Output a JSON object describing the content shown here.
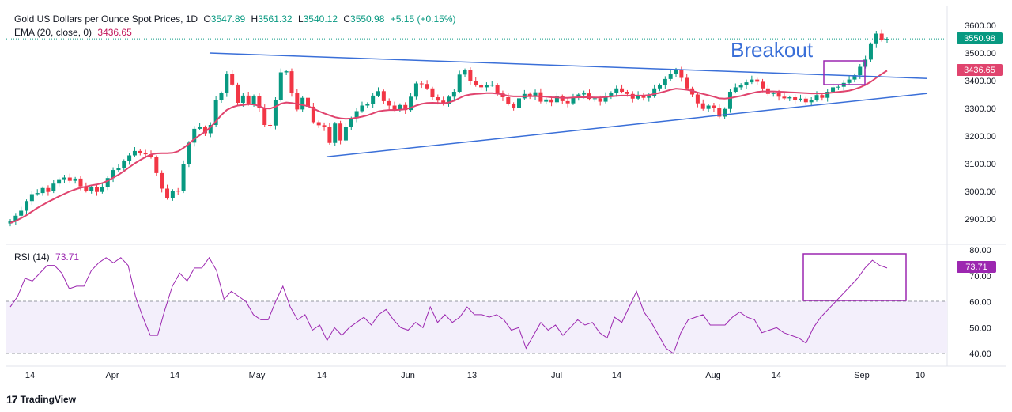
{
  "header": {
    "symbol": "Gold US Dollars per Ounce Spot Prices, 1D",
    "o_label": "O",
    "o_value": "3547.89",
    "h_label": "H",
    "h_value": "3561.32",
    "l_label": "L",
    "l_value": "3540.12",
    "c_label": "C",
    "c_value": "3550.98",
    "change": "+5.15 (+0.15%)",
    "ema_label": "EMA (20, close, 0)",
    "ema_value": "3436.65",
    "rsi_label": "RSI (14)",
    "rsi_value": "73.71"
  },
  "branding": {
    "logo": "17",
    "name": "TradingView"
  },
  "annotation": {
    "breakout": "Breakout"
  },
  "colors": {
    "up": "#089981",
    "down": "#f23645",
    "ema": "#e0446e",
    "trend": "#3a6fd8",
    "rsi": "#9c27b0",
    "box": "#9c27b0"
  },
  "chart_data": {
    "type": "candlestick",
    "price_axis": {
      "ticks": [
        "3600.00",
        "3500.00",
        "3400.00",
        "3300.00",
        "3200.00",
        "3100.00",
        "3000.00",
        "2900.00"
      ],
      "ylim": [
        2850,
        3620
      ]
    },
    "price_labels": {
      "last": "3550.98",
      "ema": "3436.65"
    },
    "x_ticks": [
      "14",
      "Apr",
      "14",
      "May",
      "14",
      "Jun",
      "13",
      "Jul",
      "14",
      "Aug",
      "14",
      "Sep",
      "10"
    ],
    "candles": [
      [
        2884,
        2894
      ],
      [
        2894,
        2912
      ],
      [
        2912,
        2930
      ],
      [
        2930,
        2965
      ],
      [
        2965,
        2990
      ],
      [
        2990,
        2994
      ],
      [
        2994,
        3012
      ],
      [
        3012,
        2998
      ],
      [
        3000,
        3028
      ],
      [
        3028,
        3044
      ],
      [
        3044,
        3050
      ],
      [
        3050,
        3038
      ],
      [
        3038,
        3046
      ],
      [
        3046,
        3018
      ],
      [
        3018,
        3002
      ],
      [
        3002,
        3016
      ],
      [
        3016,
        2998
      ],
      [
        2998,
        3015
      ],
      [
        3015,
        3048
      ],
      [
        3048,
        3077
      ],
      [
        3077,
        3085
      ],
      [
        3085,
        3110
      ],
      [
        3110,
        3130
      ],
      [
        3130,
        3146
      ],
      [
        3146,
        3140
      ],
      [
        3140,
        3134
      ],
      [
        3134,
        3124
      ],
      [
        3124,
        3066
      ],
      [
        3066,
        3010
      ],
      [
        3010,
        2976
      ],
      [
        2976,
        3002
      ],
      [
        3002,
        3000
      ],
      [
        3000,
        3098
      ],
      [
        3098,
        3176
      ],
      [
        3176,
        3226
      ],
      [
        3226,
        3232
      ],
      [
        3232,
        3210
      ],
      [
        3210,
        3240
      ],
      [
        3240,
        3330
      ],
      [
        3330,
        3355
      ],
      [
        3355,
        3424
      ],
      [
        3424,
        3386
      ],
      [
        3386,
        3320
      ],
      [
        3320,
        3346
      ],
      [
        3346,
        3316
      ],
      [
        3316,
        3344
      ],
      [
        3344,
        3300
      ],
      [
        3300,
        3240
      ],
      [
        3240,
        3238
      ],
      [
        3238,
        3330
      ],
      [
        3330,
        3430
      ],
      [
        3430,
        3434
      ],
      [
        3434,
        3356
      ],
      [
        3356,
        3296
      ],
      [
        3296,
        3338
      ],
      [
        3338,
        3306
      ],
      [
        3306,
        3250
      ],
      [
        3250,
        3239
      ],
      [
        3239,
        3232
      ],
      [
        3232,
        3175
      ],
      [
        3175,
        3245
      ],
      [
        3245,
        3184
      ],
      [
        3184,
        3232
      ],
      [
        3232,
        3264
      ],
      [
        3264,
        3290
      ],
      [
        3290,
        3310
      ],
      [
        3310,
        3316
      ],
      [
        3316,
        3346
      ],
      [
        3346,
        3362
      ],
      [
        3362,
        3326
      ],
      [
        3326,
        3310
      ],
      [
        3310,
        3296
      ],
      [
        3296,
        3312
      ],
      [
        3312,
        3294
      ],
      [
        3294,
        3342
      ],
      [
        3342,
        3390
      ],
      [
        3390,
        3388
      ],
      [
        3388,
        3372
      ],
      [
        3372,
        3340
      ],
      [
        3340,
        3328
      ],
      [
        3328,
        3316
      ],
      [
        3316,
        3342
      ],
      [
        3342,
        3360
      ],
      [
        3360,
        3422
      ],
      [
        3422,
        3438
      ],
      [
        3438,
        3400
      ],
      [
        3400,
        3384
      ],
      [
        3384,
        3376
      ],
      [
        3376,
        3384
      ],
      [
        3384,
        3385
      ],
      [
        3385,
        3354
      ],
      [
        3354,
        3340
      ],
      [
        3340,
        3316
      ],
      [
        3316,
        3302
      ],
      [
        3302,
        3336
      ],
      [
        3336,
        3352
      ],
      [
        3352,
        3344
      ],
      [
        3344,
        3358
      ],
      [
        3358,
        3324
      ],
      [
        3324,
        3332
      ],
      [
        3332,
        3322
      ],
      [
        3322,
        3344
      ],
      [
        3344,
        3326
      ],
      [
        3326,
        3318
      ],
      [
        3318,
        3338
      ],
      [
        3338,
        3350
      ],
      [
        3350,
        3354
      ],
      [
        3354,
        3334
      ],
      [
        3334,
        3336
      ],
      [
        3336,
        3324
      ],
      [
        3324,
        3344
      ],
      [
        3344,
        3356
      ],
      [
        3356,
        3372
      ],
      [
        3372,
        3360
      ],
      [
        3360,
        3352
      ],
      [
        3352,
        3335
      ],
      [
        3335,
        3348
      ],
      [
        3348,
        3338
      ],
      [
        3338,
        3344
      ],
      [
        3344,
        3372
      ],
      [
        3372,
        3384
      ],
      [
        3384,
        3406
      ],
      [
        3406,
        3424
      ],
      [
        3424,
        3440
      ],
      [
        3440,
        3410
      ],
      [
        3410,
        3372
      ],
      [
        3372,
        3350
      ],
      [
        3350,
        3318
      ],
      [
        3318,
        3298
      ],
      [
        3298,
        3310
      ],
      [
        3310,
        3300
      ],
      [
        3300,
        3270
      ],
      [
        3270,
        3298
      ],
      [
        3298,
        3360
      ],
      [
        3360,
        3376
      ],
      [
        3376,
        3385
      ],
      [
        3385,
        3394
      ],
      [
        3394,
        3404
      ],
      [
        3404,
        3396
      ],
      [
        3396,
        3372
      ],
      [
        3372,
        3352
      ],
      [
        3352,
        3356
      ],
      [
        3356,
        3342
      ],
      [
        3342,
        3336
      ],
      [
        3336,
        3340
      ],
      [
        3340,
        3330
      ],
      [
        3330,
        3335
      ],
      [
        3335,
        3322
      ],
      [
        3322,
        3330
      ],
      [
        3330,
        3348
      ],
      [
        3348,
        3338
      ],
      [
        3338,
        3360
      ],
      [
        3360,
        3376
      ],
      [
        3376,
        3378
      ],
      [
        3378,
        3392
      ],
      [
        3392,
        3404
      ],
      [
        3404,
        3420
      ],
      [
        3420,
        3450
      ],
      [
        3450,
        3476
      ],
      [
        3476,
        3532
      ],
      [
        3532,
        3570
      ],
      [
        3570,
        3547
      ],
      [
        3547,
        3551
      ]
    ],
    "ema": [
      2886,
      2893,
      2903,
      2914,
      2927,
      2940,
      2951,
      2962,
      2972,
      2982,
      2991,
      3000,
      3007,
      3013,
      3017,
      3022,
      3025,
      3030,
      3038,
      3049,
      3060,
      3073,
      3087,
      3101,
      3113,
      3124,
      3133,
      3137,
      3138,
      3138,
      3139,
      3145,
      3157,
      3172,
      3189,
      3203,
      3215,
      3232,
      3253,
      3276,
      3294,
      3304,
      3310,
      3312,
      3315,
      3314,
      3308,
      3300,
      3299,
      3306,
      3317,
      3321,
      3319,
      3316,
      3312,
      3308,
      3299,
      3290,
      3282,
      3275,
      3268,
      3264,
      3262,
      3263,
      3266,
      3270,
      3275,
      3282,
      3289,
      3292,
      3294,
      3294,
      3295,
      3297,
      3302,
      3310,
      3316,
      3319,
      3320,
      3319,
      3318,
      3321,
      3327,
      3337,
      3346,
      3350,
      3352,
      3353,
      3355,
      3355,
      3353,
      3350,
      3345,
      3343,
      3343,
      3343,
      3344,
      3344,
      3343,
      3342,
      3340,
      3339,
      3338,
      3338,
      3339,
      3340,
      3340,
      3340,
      3339,
      3339,
      3341,
      3343,
      3345,
      3346,
      3346,
      3346,
      3346,
      3346,
      3348,
      3352,
      3356,
      3361,
      3367,
      3371,
      3369,
      3367,
      3363,
      3357,
      3352,
      3347,
      3342,
      3336,
      3335,
      3337,
      3341,
      3345,
      3350,
      3355,
      3359,
      3361,
      3361,
      3361,
      3360,
      3359,
      3358,
      3357,
      3356,
      3355,
      3354,
      3354,
      3354,
      3355,
      3357,
      3359,
      3361,
      3364,
      3369,
      3376,
      3385,
      3396,
      3410,
      3424,
      3436
    ],
    "trendlines": [
      {
        "name": "upper",
        "from": [
          0.0,
          3500
        ],
        "to": [
          1.0,
          3408
        ]
      },
      {
        "name": "lower",
        "from": [
          0.0,
          3125
        ],
        "to": [
          1.0,
          3354
        ]
      }
    ],
    "rsi": {
      "axis_ticks": [
        "80.00",
        "70.00",
        "60.00",
        "50.00",
        "40.00"
      ],
      "ylim": [
        38,
        82
      ],
      "band": [
        40,
        60
      ],
      "values": [
        58,
        62,
        69,
        68,
        71,
        74,
        74,
        71,
        65,
        66,
        66,
        72,
        75,
        77,
        75,
        77,
        74,
        62,
        54,
        47,
        47,
        57,
        66,
        71,
        68,
        73,
        73,
        77,
        72,
        61,
        64,
        62,
        60,
        55,
        53,
        53,
        60,
        66,
        58,
        53,
        55,
        49,
        51,
        45,
        50,
        47,
        50,
        52,
        54,
        51,
        55,
        57,
        53,
        50,
        49,
        52,
        50,
        58,
        52,
        55,
        52,
        54,
        58,
        55,
        55,
        54,
        55,
        53,
        49,
        50,
        42,
        47,
        52,
        49,
        51,
        47,
        50,
        53,
        51,
        52,
        48,
        46,
        54,
        52,
        58,
        64,
        56,
        52,
        47,
        42,
        40,
        48,
        53,
        54,
        55,
        51,
        51,
        51,
        54,
        56,
        54,
        53,
        48,
        49,
        50,
        48,
        47,
        46,
        44,
        50,
        54,
        57,
        60,
        63,
        66,
        69,
        73,
        76,
        74,
        73
      ],
      "label": "73.71"
    }
  }
}
